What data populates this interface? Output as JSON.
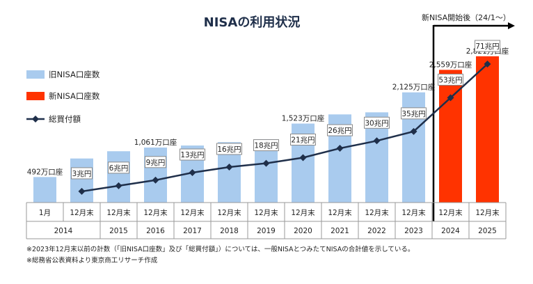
{
  "chart_data": {
    "type": "bar",
    "title": "NISAの利用状況",
    "new_period_label": "新NISA開始後（24/1〜）",
    "categories": [
      {
        "month": "1月",
        "year": "2014"
      },
      {
        "month": "12月末",
        "year": "2014"
      },
      {
        "month": "12月末",
        "year": "2015"
      },
      {
        "month": "12月末",
        "year": "2016"
      },
      {
        "month": "12月末",
        "year": "2017"
      },
      {
        "month": "12月末",
        "year": "2018"
      },
      {
        "month": "12月末",
        "year": "2019"
      },
      {
        "month": "12月末",
        "year": "2020"
      },
      {
        "month": "12月末",
        "year": "2021"
      },
      {
        "month": "12月末",
        "year": "2022"
      },
      {
        "month": "12月末",
        "year": "2023"
      },
      {
        "month": "12月末",
        "year": "2024"
      },
      {
        "month": "12月末",
        "year": "2025"
      }
    ],
    "legend": [
      {
        "name": "旧NISA口座数",
        "color": "#a9cbee",
        "kind": "bar"
      },
      {
        "name": "新NISA口座数",
        "color": "#ff3300",
        "kind": "bar"
      },
      {
        "name": "総買付額",
        "color": "#1f2f4a",
        "kind": "line"
      }
    ],
    "series": [
      {
        "name": "旧NISA口座数",
        "unit": "万口座",
        "values": [
          492,
          850,
          990,
          1061,
          1100,
          1165,
          1220,
          1523,
          1700,
          1740,
          2125,
          null,
          null
        ],
        "labels": [
          "492万口座",
          "",
          "",
          "1,061万口座",
          "",
          "",
          "",
          "1,523万口座",
          "",
          "",
          "2,125万口座",
          "",
          ""
        ]
      },
      {
        "name": "新NISA口座数",
        "unit": "万口座",
        "values": [
          null,
          null,
          null,
          null,
          null,
          null,
          null,
          null,
          null,
          null,
          null,
          2559,
          2821
        ],
        "labels": [
          "",
          "",
          "",
          "",
          "",
          "",
          "",
          "",
          "",
          "",
          "",
          "2,559万口座",
          "2,821万口座"
        ]
      },
      {
        "name": "総買付額",
        "unit": "兆円",
        "values": [
          null,
          3,
          6,
          9,
          13,
          16,
          18,
          21,
          26,
          30,
          35,
          53,
          71
        ],
        "labels": [
          "",
          "3兆円",
          "6兆円",
          "9兆円",
          "13兆円",
          "16兆円",
          "18兆円",
          "21兆円",
          "26兆円",
          "30兆円",
          "35兆円",
          "53兆円",
          "71兆円"
        ]
      }
    ],
    "legend_placement": "left",
    "grid": false
  },
  "notes": [
    "※2023年12月末以前の計数（「旧NISA口座数」及び「総買付額」）については、一般NISAとつみたてNISAの合計値を示している。",
    "※総務省公表資料より東京商工リサーチ作成"
  ]
}
